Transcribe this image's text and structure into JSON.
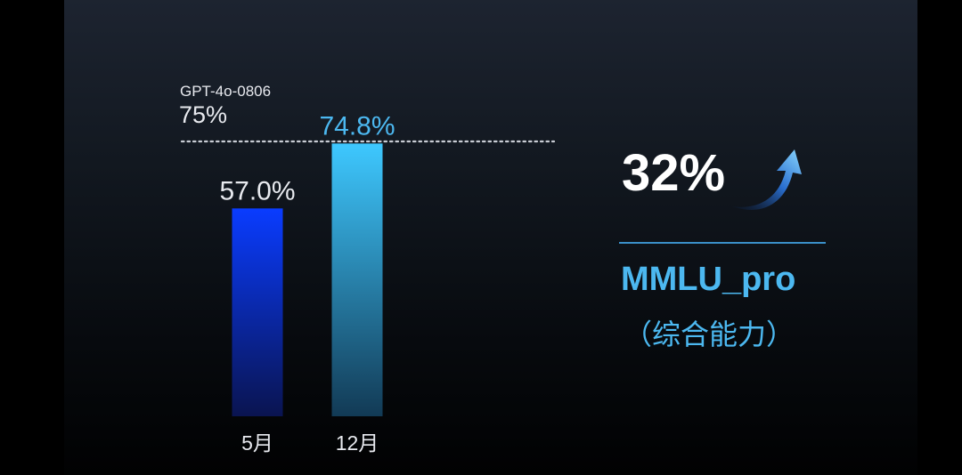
{
  "colors": {
    "bar1_top": "#0a3cff",
    "bar1_bottom": "#0a1450",
    "bar2_top": "#3ec8ff",
    "bar2_bottom": "#123a55",
    "bar1_label": "#e8eaef",
    "bar2_label": "#4cb8f0",
    "reference_line": "#c8ccd4",
    "accent": "#4cb8f0",
    "divider": "#3a8fc8"
  },
  "summary": {
    "improvement": "32%",
    "arrow_icon": "rising-arrow-icon",
    "metric": "MMLU_pro",
    "subtitle": "（综合能力）"
  },
  "chart_data": {
    "type": "bar",
    "categories": [
      "5月",
      "12月"
    ],
    "values": [
      57.0,
      74.8
    ],
    "value_labels": [
      "57.0%",
      "74.8%"
    ],
    "reference": {
      "name": "GPT-4o-0806",
      "value": 75,
      "label": "75%",
      "style": "dotted"
    },
    "ylim": [
      0,
      100
    ],
    "grid": false,
    "legend": "none"
  }
}
